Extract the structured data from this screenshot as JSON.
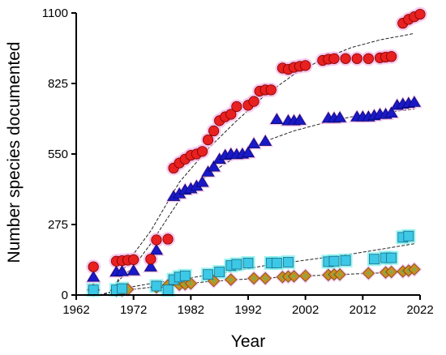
{
  "chart_data": {
    "type": "scatter",
    "title": "",
    "xlabel": "Year",
    "ylabel": "Number species documented",
    "xlim": [
      1962,
      2022
    ],
    "ylim": [
      0,
      1100
    ],
    "x_ticks": [
      1962,
      1972,
      1982,
      1992,
      2002,
      2012,
      2022
    ],
    "y_ticks": [
      0,
      275,
      550,
      825,
      1100
    ],
    "grid": false,
    "legend": "none",
    "series": [
      {
        "marker": "circle",
        "color": "#e8201f",
        "halo": "#f5b8e8",
        "points": [
          [
            1965,
            110
          ],
          [
            1969,
            132
          ],
          [
            1970,
            134
          ],
          [
            1971,
            136
          ],
          [
            1972,
            138
          ],
          [
            1975,
            140
          ],
          [
            1976,
            215
          ],
          [
            1978,
            218
          ],
          [
            1979,
            495
          ],
          [
            1980,
            515
          ],
          [
            1981,
            530
          ],
          [
            1982,
            545
          ],
          [
            1983,
            550
          ],
          [
            1984,
            560
          ],
          [
            1985,
            605
          ],
          [
            1986,
            640
          ],
          [
            1987,
            680
          ],
          [
            1988,
            695
          ],
          [
            1989,
            705
          ],
          [
            1990,
            735
          ],
          [
            1992,
            740
          ],
          [
            1993,
            755
          ],
          [
            1994,
            795
          ],
          [
            1995,
            800
          ],
          [
            1996,
            800
          ],
          [
            1998,
            885
          ],
          [
            1999,
            880
          ],
          [
            2000,
            888
          ],
          [
            2001,
            892
          ],
          [
            2002,
            895
          ],
          [
            2005,
            915
          ],
          [
            2006,
            920
          ],
          [
            2007,
            922
          ],
          [
            2009,
            922
          ],
          [
            2011,
            922
          ],
          [
            2013,
            922
          ],
          [
            2015,
            925
          ],
          [
            2016,
            928
          ],
          [
            2017,
            930
          ],
          [
            2019,
            1060
          ],
          [
            2020,
            1075
          ],
          [
            2021,
            1085
          ],
          [
            2022,
            1095
          ]
        ]
      },
      {
        "marker": "triangle",
        "color": "#1919c8",
        "halo": "#f5b8e8",
        "points": [
          [
            1965,
            70
          ],
          [
            1969,
            90
          ],
          [
            1970,
            92
          ],
          [
            1972,
            95
          ],
          [
            1975,
            110
          ],
          [
            1976,
            175
          ],
          [
            1979,
            385
          ],
          [
            1980,
            395
          ],
          [
            1981,
            410
          ],
          [
            1982,
            415
          ],
          [
            1983,
            425
          ],
          [
            1984,
            440
          ],
          [
            1985,
            480
          ],
          [
            1986,
            500
          ],
          [
            1987,
            530
          ],
          [
            1988,
            545
          ],
          [
            1989,
            550
          ],
          [
            1990,
            548
          ],
          [
            1991,
            550
          ],
          [
            1992,
            555
          ],
          [
            1993,
            590
          ],
          [
            1995,
            600
          ],
          [
            1997,
            685
          ],
          [
            1999,
            680
          ],
          [
            2000,
            680
          ],
          [
            2001,
            682
          ],
          [
            2006,
            690
          ],
          [
            2007,
            690
          ],
          [
            2008,
            692
          ],
          [
            2011,
            695
          ],
          [
            2012,
            695
          ],
          [
            2013,
            695
          ],
          [
            2014,
            700
          ],
          [
            2015,
            705
          ],
          [
            2016,
            705
          ],
          [
            2017,
            710
          ],
          [
            2018,
            740
          ],
          [
            2019,
            745
          ],
          [
            2020,
            748
          ],
          [
            2021,
            752
          ]
        ]
      },
      {
        "marker": "square",
        "color": "#3cc8e6",
        "halo": "#7af0ec",
        "points": [
          [
            1965,
            20
          ],
          [
            1969,
            20
          ],
          [
            1970,
            25
          ],
          [
            1976,
            35
          ],
          [
            1978,
            20
          ],
          [
            1979,
            60
          ],
          [
            1980,
            70
          ],
          [
            1981,
            75
          ],
          [
            1985,
            80
          ],
          [
            1987,
            90
          ],
          [
            1989,
            115
          ],
          [
            1990,
            120
          ],
          [
            1992,
            125
          ],
          [
            1996,
            125
          ],
          [
            1997,
            125
          ],
          [
            1999,
            128
          ],
          [
            2006,
            130
          ],
          [
            2007,
            132
          ],
          [
            2009,
            135
          ],
          [
            2014,
            140
          ],
          [
            2016,
            145
          ],
          [
            2017,
            145
          ],
          [
            2019,
            225
          ],
          [
            2020,
            230
          ]
        ]
      },
      {
        "marker": "diamond",
        "color": "#d4881e",
        "halo": "#f5b8e8",
        "inner": "#7ab04a",
        "points": [
          [
            1965,
            20
          ],
          [
            1969,
            18
          ],
          [
            1970,
            18
          ],
          [
            1971,
            22
          ],
          [
            1976,
            30
          ],
          [
            1978,
            38
          ],
          [
            1980,
            40
          ],
          [
            1981,
            42
          ],
          [
            1982,
            45
          ],
          [
            1986,
            55
          ],
          [
            1989,
            60
          ],
          [
            1993,
            65
          ],
          [
            1995,
            65
          ],
          [
            1998,
            70
          ],
          [
            1999,
            72
          ],
          [
            2000,
            73
          ],
          [
            2002,
            75
          ],
          [
            2006,
            78
          ],
          [
            2007,
            80
          ],
          [
            2008,
            80
          ],
          [
            2013,
            85
          ],
          [
            2016,
            88
          ],
          [
            2017,
            90
          ],
          [
            2019,
            92
          ],
          [
            2020,
            95
          ],
          [
            2021,
            100
          ]
        ]
      }
    ],
    "fits": [
      {
        "series": 0,
        "points": [
          [
            1968,
            0
          ],
          [
            1970,
            90
          ],
          [
            1972,
            160
          ],
          [
            1975,
            250
          ],
          [
            1980,
            440
          ],
          [
            1985,
            570
          ],
          [
            1990,
            680
          ],
          [
            1995,
            780
          ],
          [
            2000,
            860
          ],
          [
            2005,
            920
          ],
          [
            2010,
            965
          ],
          [
            2015,
            995
          ],
          [
            2021,
            1020
          ]
        ]
      },
      {
        "series": 1,
        "points": [
          [
            1968,
            20
          ],
          [
            1970,
            70
          ],
          [
            1972,
            110
          ],
          [
            1975,
            200
          ],
          [
            1980,
            370
          ],
          [
            1985,
            470
          ],
          [
            1990,
            540
          ],
          [
            1995,
            600
          ],
          [
            2000,
            640
          ],
          [
            2005,
            670
          ],
          [
            2010,
            695
          ],
          [
            2015,
            710
          ],
          [
            2021,
            725
          ]
        ]
      },
      {
        "series": 2,
        "points": [
          [
            1966,
            0
          ],
          [
            1970,
            25
          ],
          [
            1975,
            45
          ],
          [
            1980,
            60
          ],
          [
            1985,
            78
          ],
          [
            1990,
            95
          ],
          [
            1995,
            115
          ],
          [
            2000,
            130
          ],
          [
            2005,
            145
          ],
          [
            2010,
            160
          ],
          [
            2015,
            178
          ],
          [
            2021,
            200
          ]
        ]
      },
      {
        "series": 3,
        "points": [
          [
            1966,
            0
          ],
          [
            1970,
            18
          ],
          [
            1975,
            30
          ],
          [
            1980,
            42
          ],
          [
            1985,
            52
          ],
          [
            1990,
            60
          ],
          [
            1995,
            66
          ],
          [
            2000,
            72
          ],
          [
            2005,
            77
          ],
          [
            2010,
            82
          ],
          [
            2015,
            86
          ],
          [
            2021,
            92
          ]
        ]
      }
    ]
  }
}
